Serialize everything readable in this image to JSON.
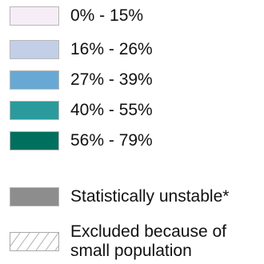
{
  "legend": {
    "classes": [
      {
        "label": "0% - 15%",
        "color": "#f6edf7"
      },
      {
        "label": "16% - 26%",
        "color": "#c2cfe7"
      },
      {
        "label": "27% - 39%",
        "color": "#67a9d4"
      },
      {
        "label": "40% - 55%",
        "color": "#2a9a9d"
      },
      {
        "label": "56% - 79%",
        "color": "#016f5d"
      }
    ],
    "unstable": {
      "label": "Statistically unstable*",
      "color": "#8d8d8d"
    },
    "excluded": {
      "label": "Excluded because of small population",
      "color": "#ffffff"
    }
  }
}
